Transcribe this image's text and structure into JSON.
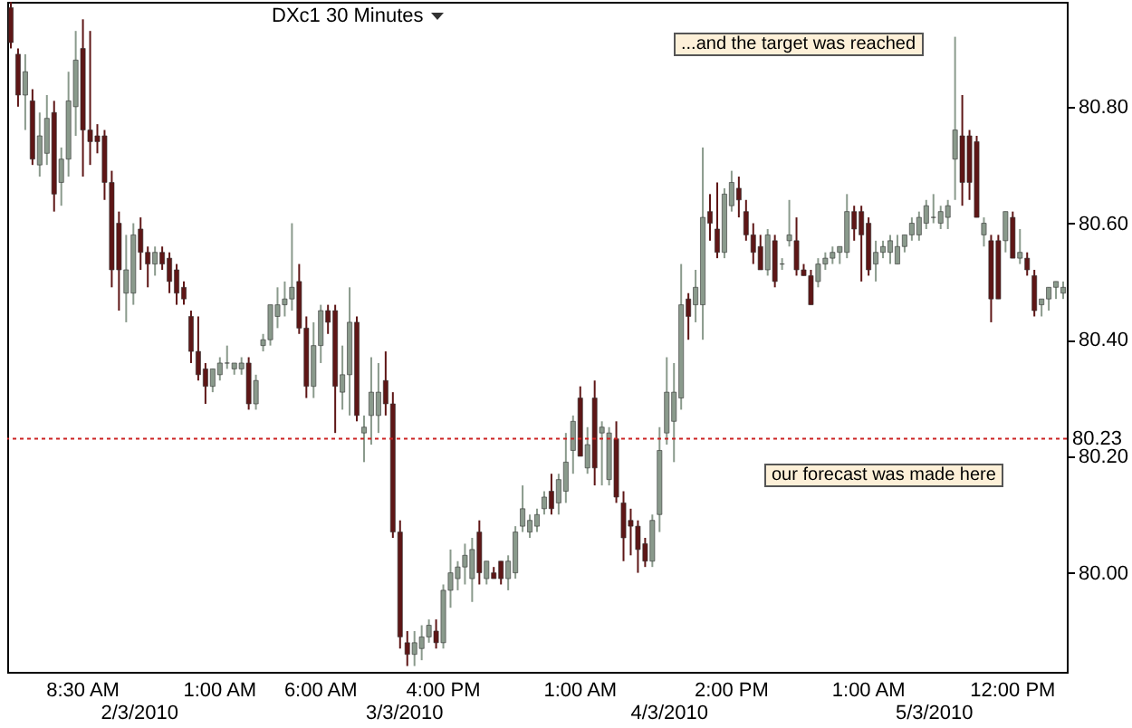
{
  "chart_data": {
    "type": "candlestick",
    "title": "DXc1 30 Minutes",
    "categories": [
      null,
      null,
      null,
      null,
      null,
      null,
      null,
      null,
      null,
      null,
      "8:30 AM",
      null,
      null,
      null,
      null,
      null,
      null,
      null,
      null,
      null,
      null,
      null,
      null,
      null,
      null,
      null,
      null,
      null,
      null,
      "1:00 AM",
      null,
      null,
      null,
      null,
      null,
      null,
      null,
      null,
      null,
      null,
      null,
      null,
      null,
      "6:00 AM",
      null,
      null,
      null,
      null,
      null,
      null,
      null,
      null,
      null,
      null,
      null,
      null,
      null,
      null,
      null,
      null,
      "4:00 PM",
      null,
      null,
      null,
      null,
      null,
      null,
      null,
      null,
      null,
      null,
      null,
      null,
      null,
      null,
      null,
      null,
      null,
      null,
      "1:00 AM",
      null,
      null,
      null,
      null,
      null,
      null,
      null,
      null,
      null,
      null,
      null,
      null,
      null,
      null,
      null,
      null,
      null,
      null,
      null,
      null,
      "2:00 PM",
      null,
      null,
      null,
      null,
      null,
      null,
      null,
      null,
      null,
      null,
      null,
      null,
      null,
      null,
      null,
      null,
      null,
      null,
      "1:00 AM",
      null,
      null,
      null,
      null,
      null,
      null,
      null,
      null,
      null,
      null,
      null,
      null,
      null,
      null,
      null,
      null,
      null,
      null,
      null,
      "12:00 PM",
      null,
      null,
      null,
      null,
      null,
      null,
      null
    ],
    "ohlc": [
      [
        80.97,
        80.98,
        80.9,
        80.91
      ],
      [
        80.89,
        80.9,
        80.8,
        80.82
      ],
      [
        80.82,
        80.89,
        80.76,
        80.86
      ],
      [
        80.81,
        80.83,
        80.7,
        80.71
      ],
      [
        80.7,
        80.79,
        80.68,
        80.75
      ],
      [
        80.72,
        80.82,
        80.7,
        80.78
      ],
      [
        80.79,
        80.81,
        80.62,
        80.65
      ],
      [
        80.67,
        80.73,
        80.63,
        80.71
      ],
      [
        80.71,
        80.86,
        80.68,
        80.81
      ],
      [
        80.8,
        80.93,
        80.75,
        80.88
      ],
      [
        80.9,
        80.95,
        80.68,
        80.76
      ],
      [
        80.76,
        80.93,
        80.7,
        80.74
      ],
      [
        80.75,
        80.77,
        80.72,
        80.74
      ],
      [
        80.75,
        80.76,
        80.64,
        80.67
      ],
      [
        80.67,
        80.69,
        80.49,
        80.52
      ],
      [
        80.6,
        80.62,
        80.45,
        80.52
      ],
      [
        80.48,
        80.58,
        80.43,
        80.52
      ],
      [
        80.48,
        80.6,
        80.46,
        80.58
      ],
      [
        80.59,
        80.61,
        80.52,
        80.55
      ],
      [
        80.55,
        80.56,
        80.49,
        80.53
      ],
      [
        80.53,
        80.56,
        80.51,
        80.55
      ],
      [
        80.55,
        80.56,
        80.52,
        80.53
      ],
      [
        80.54,
        80.55,
        80.48,
        80.5
      ],
      [
        80.52,
        80.53,
        80.46,
        80.48
      ],
      [
        80.49,
        80.5,
        80.46,
        80.47
      ],
      [
        80.44,
        80.45,
        80.36,
        80.38
      ],
      [
        80.38,
        80.44,
        80.33,
        80.34
      ],
      [
        80.35,
        80.36,
        80.29,
        80.32
      ],
      [
        80.32,
        80.35,
        80.31,
        80.35
      ],
      [
        80.34,
        80.37,
        80.33,
        80.36
      ],
      [
        80.36,
        80.39,
        80.35,
        80.36
      ],
      [
        80.35,
        80.36,
        80.34,
        80.36
      ],
      [
        80.35,
        80.37,
        80.34,
        80.36
      ],
      [
        80.36,
        80.37,
        80.28,
        80.29
      ],
      [
        80.29,
        80.34,
        80.28,
        80.33
      ],
      [
        80.39,
        80.41,
        80.38,
        80.4
      ],
      [
        80.4,
        80.46,
        80.39,
        80.46
      ],
      [
        80.44,
        80.49,
        80.42,
        80.46
      ],
      [
        80.46,
        80.5,
        80.44,
        80.47
      ],
      [
        80.47,
        80.6,
        80.45,
        80.49
      ],
      [
        80.5,
        80.53,
        80.41,
        80.42
      ],
      [
        80.42,
        80.44,
        80.3,
        80.32
      ],
      [
        80.32,
        80.43,
        80.3,
        80.39
      ],
      [
        80.39,
        80.46,
        80.36,
        80.45
      ],
      [
        80.45,
        80.46,
        80.41,
        80.43
      ],
      [
        80.45,
        80.46,
        80.24,
        80.32
      ],
      [
        80.31,
        80.39,
        80.28,
        80.34
      ],
      [
        80.34,
        80.49,
        80.27,
        80.43
      ],
      [
        80.43,
        80.44,
        80.26,
        80.27
      ],
      [
        80.24,
        80.27,
        80.19,
        80.25
      ],
      [
        80.27,
        80.37,
        80.22,
        80.31
      ],
      [
        80.27,
        80.36,
        80.24,
        80.31
      ],
      [
        80.33,
        80.38,
        80.27,
        80.29
      ],
      [
        80.29,
        80.31,
        80.06,
        80.07
      ],
      [
        80.07,
        80.09,
        79.87,
        79.89
      ],
      [
        79.88,
        79.9,
        79.84,
        79.86
      ],
      [
        79.86,
        79.9,
        79.84,
        79.88
      ],
      [
        79.87,
        79.91,
        79.85,
        79.89
      ],
      [
        79.89,
        79.92,
        79.88,
        79.91
      ],
      [
        79.9,
        79.92,
        79.87,
        79.88
      ],
      [
        79.88,
        79.98,
        79.87,
        79.97
      ],
      [
        79.97,
        80.04,
        79.94,
        80.0
      ],
      [
        79.99,
        80.02,
        79.97,
        80.01
      ],
      [
        80.01,
        80.05,
        79.98,
        80.03
      ],
      [
        79.99,
        80.06,
        79.95,
        80.04
      ],
      [
        80.07,
        80.09,
        79.98,
        80.0
      ],
      [
        79.99,
        80.02,
        79.98,
        80.02
      ],
      [
        80.0,
        80.01,
        79.99,
        79.99
      ],
      [
        80.02,
        80.02,
        79.98,
        79.99
      ],
      [
        79.99,
        80.03,
        79.97,
        80.02
      ],
      [
        80.0,
        80.08,
        79.99,
        80.07
      ],
      [
        80.08,
        80.15,
        80.07,
        80.11
      ],
      [
        80.07,
        80.1,
        80.06,
        80.09
      ],
      [
        80.08,
        80.11,
        80.07,
        80.1
      ],
      [
        80.11,
        80.14,
        80.1,
        80.13
      ],
      [
        80.14,
        80.17,
        80.1,
        80.11
      ],
      [
        80.12,
        80.17,
        80.1,
        80.16
      ],
      [
        80.14,
        80.24,
        80.12,
        80.19
      ],
      [
        80.21,
        80.27,
        80.17,
        80.26
      ],
      [
        80.3,
        80.32,
        80.2,
        80.2
      ],
      [
        80.18,
        80.25,
        80.17,
        80.22
      ],
      [
        80.3,
        80.33,
        80.15,
        80.18
      ],
      [
        80.24,
        80.26,
        80.15,
        80.25
      ],
      [
        80.16,
        80.25,
        80.15,
        80.24
      ],
      [
        80.23,
        80.26,
        80.12,
        80.13
      ],
      [
        80.12,
        80.14,
        80.02,
        80.06
      ],
      [
        80.09,
        80.11,
        80.03,
        80.08
      ],
      [
        80.08,
        80.09,
        80.0,
        80.04
      ],
      [
        80.05,
        80.06,
        80.01,
        80.02
      ],
      [
        80.02,
        80.1,
        80.01,
        80.09
      ],
      [
        80.1,
        80.25,
        80.07,
        80.21
      ],
      [
        80.24,
        80.37,
        80.22,
        80.31
      ],
      [
        80.26,
        80.36,
        80.19,
        80.31
      ],
      [
        80.3,
        80.53,
        80.28,
        80.46
      ],
      [
        80.47,
        80.48,
        80.4,
        80.44
      ],
      [
        80.46,
        80.52,
        80.43,
        80.49
      ],
      [
        80.46,
        80.73,
        80.4,
        80.61
      ],
      [
        80.62,
        80.65,
        80.57,
        80.6
      ],
      [
        80.59,
        80.67,
        80.54,
        80.55
      ],
      [
        80.55,
        80.66,
        80.54,
        80.65
      ],
      [
        80.63,
        80.69,
        80.62,
        80.67
      ],
      [
        80.66,
        80.68,
        80.61,
        80.64
      ],
      [
        80.62,
        80.64,
        80.57,
        80.58
      ],
      [
        80.58,
        80.6,
        80.53,
        80.55
      ],
      [
        80.56,
        80.58,
        80.52,
        80.52
      ],
      [
        80.52,
        80.59,
        80.51,
        80.58
      ],
      [
        80.57,
        80.58,
        80.49,
        80.5
      ],
      [
        80.53,
        80.54,
        80.52,
        80.53
      ],
      [
        80.57,
        80.64,
        80.56,
        80.58
      ],
      [
        80.57,
        80.61,
        80.51,
        80.52
      ],
      [
        80.52,
        80.53,
        80.51,
        80.51
      ],
      [
        80.51,
        80.52,
        80.46,
        80.46
      ],
      [
        80.5,
        80.54,
        80.49,
        80.53
      ],
      [
        80.53,
        80.55,
        80.52,
        80.54
      ],
      [
        80.54,
        80.56,
        80.53,
        80.55
      ],
      [
        80.55,
        80.56,
        80.53,
        80.56
      ],
      [
        80.55,
        80.65,
        80.54,
        80.62
      ],
      [
        80.62,
        80.63,
        80.57,
        80.59
      ],
      [
        80.62,
        80.63,
        80.5,
        80.58
      ],
      [
        80.6,
        80.61,
        80.51,
        80.52
      ],
      [
        80.53,
        80.57,
        80.5,
        80.55
      ],
      [
        80.55,
        80.57,
        80.54,
        80.56
      ],
      [
        80.55,
        80.58,
        80.53,
        80.57
      ],
      [
        80.53,
        80.58,
        80.53,
        80.56
      ],
      [
        80.56,
        80.58,
        80.55,
        80.58
      ],
      [
        80.58,
        80.61,
        80.57,
        80.6
      ],
      [
        80.58,
        80.62,
        80.57,
        80.61
      ],
      [
        80.6,
        80.64,
        80.59,
        80.63
      ],
      [
        80.61,
        80.65,
        80.6,
        80.61
      ],
      [
        80.6,
        80.63,
        80.59,
        80.62
      ],
      [
        80.61,
        80.64,
        80.59,
        80.63
      ],
      [
        80.71,
        80.92,
        80.64,
        80.76
      ],
      [
        80.75,
        80.82,
        80.63,
        80.67
      ],
      [
        80.75,
        80.76,
        80.64,
        80.67
      ],
      [
        80.74,
        80.75,
        80.61,
        80.61
      ],
      [
        80.58,
        80.61,
        80.56,
        80.6
      ],
      [
        80.57,
        80.58,
        80.43,
        80.47
      ],
      [
        80.57,
        80.58,
        80.47,
        80.47
      ],
      [
        80.57,
        80.62,
        80.55,
        80.62
      ],
      [
        80.61,
        80.62,
        80.54,
        80.54
      ],
      [
        80.54,
        80.59,
        80.53,
        80.55
      ],
      [
        80.54,
        80.55,
        80.51,
        80.52
      ],
      [
        80.51,
        80.52,
        80.44,
        80.45
      ],
      [
        80.46,
        80.47,
        80.44,
        80.47
      ],
      [
        80.47,
        80.49,
        80.45,
        80.49
      ],
      [
        80.49,
        80.5,
        80.47,
        80.5
      ],
      [
        80.48,
        80.5,
        80.47,
        80.49
      ]
    ],
    "ylim": [
      79.83,
      80.98
    ],
    "yticks": [
      {
        "value": 80,
        "label": "80.00"
      },
      {
        "value": 80.2,
        "label": "80.20"
      },
      {
        "value": 80.4,
        "label": "80.40"
      },
      {
        "value": 80.6,
        "label": "80.60"
      },
      {
        "value": 80.8,
        "label": "80.80"
      }
    ],
    "ref_lines": [
      {
        "axis": "y",
        "value": 80.23,
        "label": "80.23",
        "color": "#cc2222",
        "line_style": "dotted"
      }
    ],
    "annotations": [
      "...and the target was reached",
      "our forecast was made here",
      "2/3/2010",
      "3/3/2010",
      "4/3/2010",
      "5/3/2010"
    ]
  }
}
